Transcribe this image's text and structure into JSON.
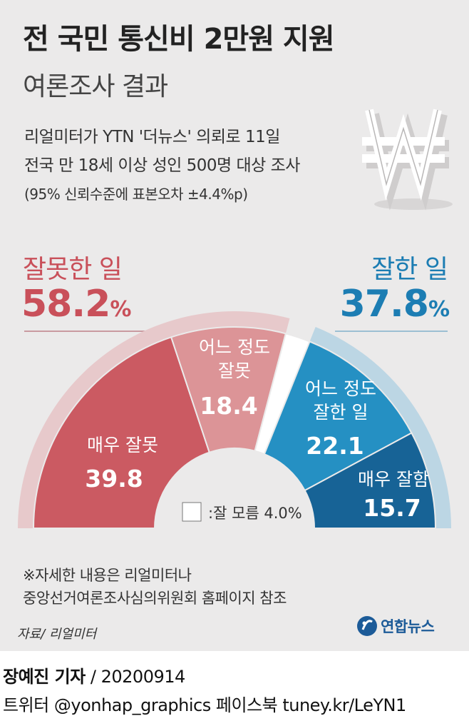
{
  "header": {
    "title": "전 국민 통신비 2만원 지원",
    "subtitle": "여론조사 결과",
    "survey_line1": "리얼미터가 YTN '더뉴스' 의뢰로 11일",
    "survey_line2": "전국 만 18세 이상 성인 500명 대상 조사",
    "survey_line3": "(95% 신뢰수준에 표본오차 ±4.4%p)"
  },
  "summary": {
    "negative_label": "잘못한 일",
    "negative_value": "58.2",
    "positive_label": "잘한 일",
    "positive_value": "37.8",
    "percent_sign": "%"
  },
  "chart_data": {
    "type": "pie",
    "shape": "semicircle-donut",
    "unit": "%",
    "slices": [
      {
        "label": "매우 잘못",
        "value": 39.8,
        "color": "#cb5a62"
      },
      {
        "label": "어느 정도 잘못",
        "value": 18.4,
        "color": "#dc9497"
      },
      {
        "label": "잘 모름",
        "value": 4.0,
        "color": "#ffffff"
      },
      {
        "label": "어느 정도 잘한 일",
        "value": 22.1,
        "color": "#2590c3"
      },
      {
        "label": "매우 잘함",
        "value": 15.7,
        "color": "#176396"
      }
    ],
    "groups": [
      {
        "label": "잘못한 일",
        "value": 58.2,
        "color": "#e7c9cb"
      },
      {
        "label": "잘한 일",
        "value": 37.8,
        "color": "#bcd6e4"
      }
    ],
    "legend_label": ":잘 모름 4.0%"
  },
  "chart_labels": {
    "s0_l1": "매우 잘못",
    "s0_v": "39.8",
    "s1_l1": "어느 정도",
    "s1_l2": "잘못",
    "s1_v": "18.4",
    "s3_l1": "어느 정도",
    "s3_l2": "잘한 일",
    "s3_v": "22.1",
    "s4_l1": "매우 잘함",
    "s4_v": "15.7"
  },
  "footer": {
    "note_line1": "※자세한 내용은 리얼미터나",
    "note_line2": "중앙선거여론조사심의위원회 홈페이지 참조",
    "source": "자료/ 리얼미터",
    "logo_text": "연합뉴스",
    "reporter_name": "장예진 기자",
    "reporter_date": " / 20200914",
    "social": "트위터 @yonhap_graphics  페이스북 tuney.kr/LeYN1"
  },
  "icons": {
    "won": "won-sign-icon",
    "logo": "yonhap-logo-icon"
  }
}
